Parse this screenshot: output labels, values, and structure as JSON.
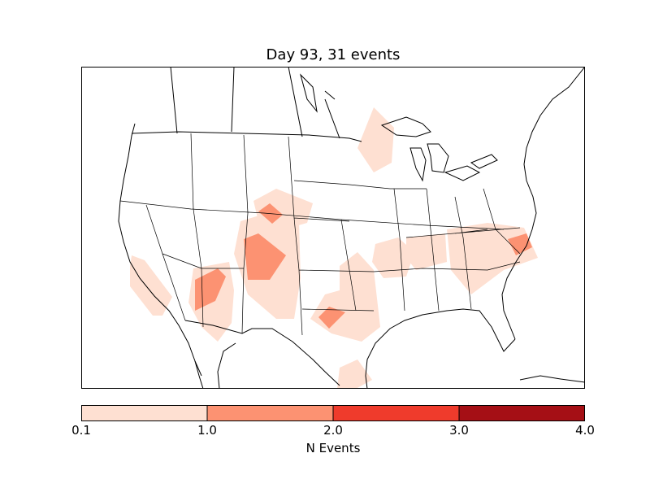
{
  "title": "Day 93, 31 events",
  "colorbar": {
    "label": "N Events",
    "ticks": [
      "0.1",
      "1.0",
      "2.0",
      "3.0",
      "4.0"
    ],
    "bins": [
      {
        "min": 0.1,
        "max": 1.0,
        "color": "#fee0d2"
      },
      {
        "min": 1.0,
        "max": 2.0,
        "color": "#fc9272"
      },
      {
        "min": 2.0,
        "max": 3.0,
        "color": "#ef3b2c"
      },
      {
        "min": 3.0,
        "max": 4.0,
        "color": "#a50f15"
      }
    ]
  },
  "map": {
    "region": "North America (contiguous United States)",
    "layers": [
      "coastlines",
      "country borders",
      "state borders"
    ],
    "event_density_regions": [
      {
        "area": "California coast",
        "level": "0.1-1.0"
      },
      {
        "area": "Southern Nevada / Arizona",
        "level": "1.0-2.0"
      },
      {
        "area": "Wyoming / South Dakota",
        "level": "1.0-2.0"
      },
      {
        "area": "Colorado",
        "level": "1.0-2.0"
      },
      {
        "area": "Oklahoma / North Texas",
        "level": "1.0-2.0"
      },
      {
        "area": "Kansas / Missouri / Arkansas",
        "level": "0.1-1.0"
      },
      {
        "area": "Kentucky / Tennessee",
        "level": "0.1-1.0"
      },
      {
        "area": "Carolinas",
        "level": "1.0-2.0"
      },
      {
        "area": "Wisconsin / Lake Superior",
        "level": "0.1-1.0"
      },
      {
        "area": "South Texas coast",
        "level": "0.1-1.0"
      }
    ]
  }
}
